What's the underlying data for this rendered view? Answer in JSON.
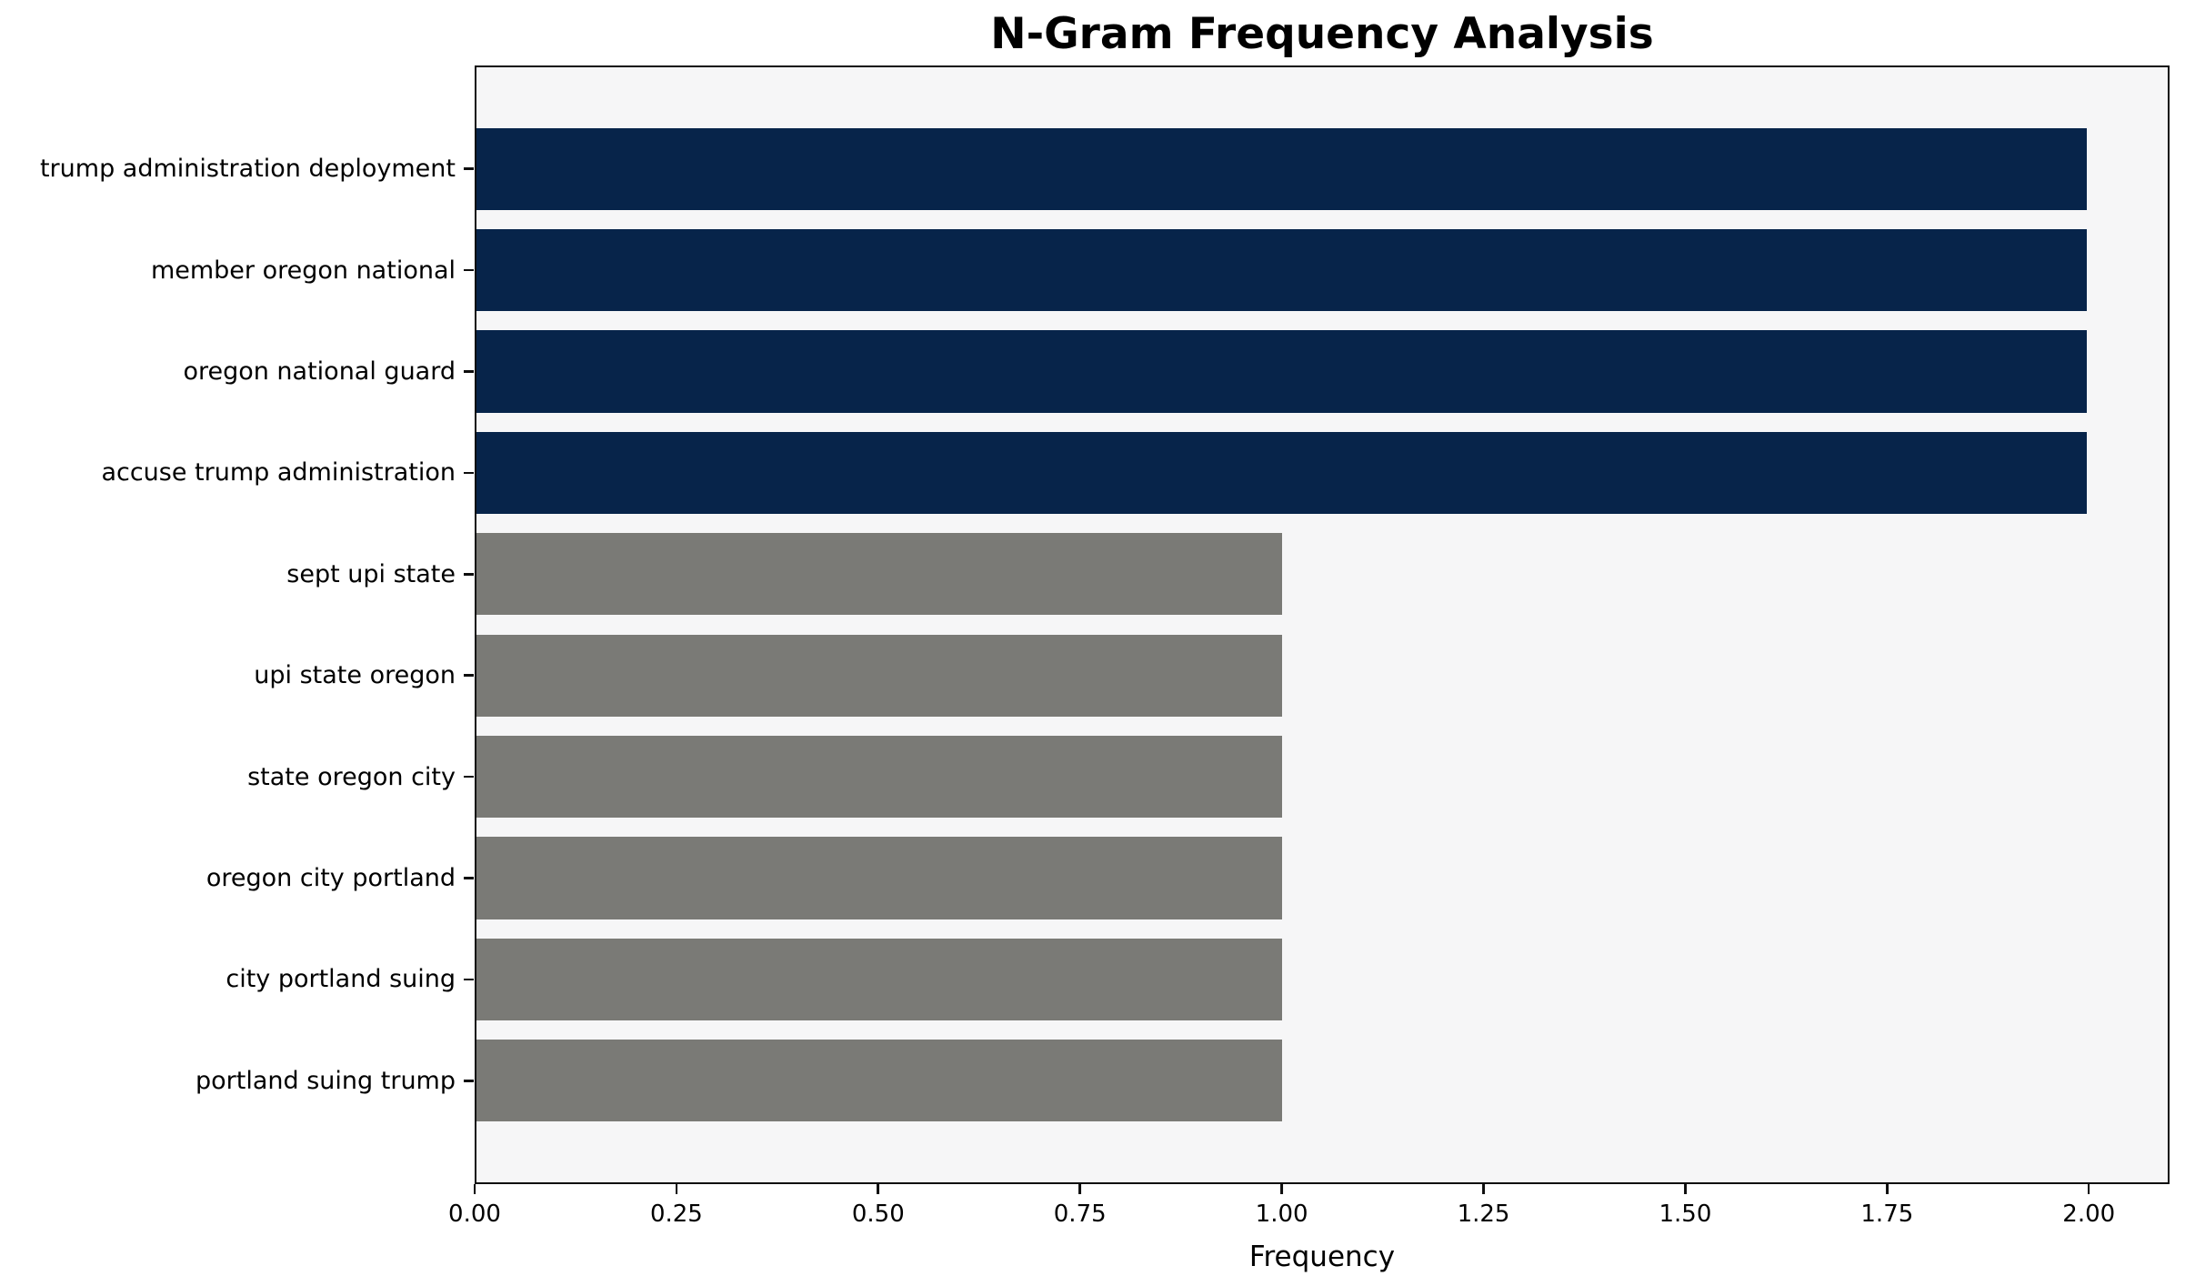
{
  "chart_data": {
    "type": "bar",
    "orientation": "horizontal",
    "title": "N-Gram Frequency Analysis",
    "xlabel": "Frequency",
    "ylabel": "",
    "categories": [
      "trump administration deployment",
      "member oregon national",
      "oregon national guard",
      "accuse trump administration",
      "sept upi state",
      "upi state oregon",
      "state oregon city",
      "oregon city portland",
      "city portland suing",
      "portland suing trump"
    ],
    "values": [
      2,
      2,
      2,
      2,
      1,
      1,
      1,
      1,
      1,
      1
    ],
    "bar_colors": [
      "#07244a",
      "#07244a",
      "#07244a",
      "#07244a",
      "#7a7a76",
      "#7a7a76",
      "#7a7a76",
      "#7a7a76",
      "#7a7a76",
      "#7a7a76"
    ],
    "xlim": [
      0,
      2.1
    ],
    "x_tick_values": [
      0,
      0.25,
      0.5,
      0.75,
      1.0,
      1.25,
      1.5,
      1.75,
      2.0
    ],
    "x_tick_labels": [
      "0.00",
      "0.25",
      "0.50",
      "0.75",
      "1.00",
      "1.25",
      "1.50",
      "1.75",
      "2.00"
    ],
    "grid": false,
    "legend": "none",
    "bar_height_fraction": 0.8,
    "colors": {
      "bar_high": "#07244a",
      "bar_low": "#7a7a76",
      "plot_background": "#f6f6f7",
      "figure_background": "#ffffff",
      "axis": "#0d0d0d",
      "text": "#000000"
    }
  }
}
